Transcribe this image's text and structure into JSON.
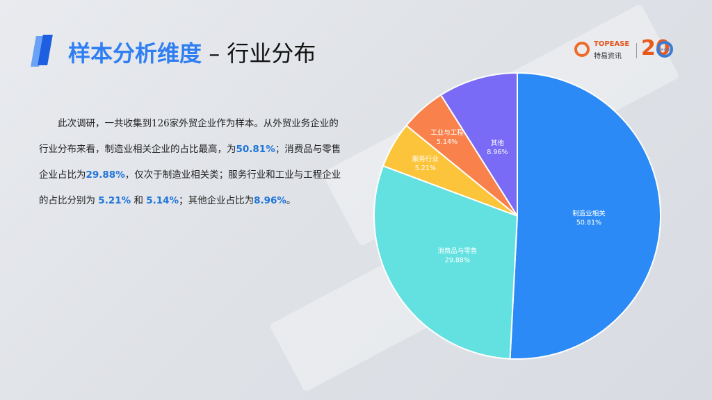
{
  "header": {
    "title_highlight": "样本分析维度",
    "title_rest": " – 行业分布"
  },
  "logo": {
    "brand": "TOPEASE",
    "brand_cn": "特易资讯",
    "anniversary": "20",
    "years": "years"
  },
  "description": {
    "p1": "此次调研，一共收集到126家外贸企业作为样本。从外贸业务企业的行业分布来看，制造业相关企业的占比最高，为",
    "v1": "50.81%",
    "p2": "；消费品与零售企业占比为",
    "v2": "29.88%",
    "p3": "，仅次于制造业相关类；服务行业和工业与工程企业的占比分别为",
    "v3": "5.21%",
    "p4": "和",
    "v4": "5.14%",
    "p5": "；其他企业占比为",
    "v5": "8.96%",
    "p6": "。"
  },
  "chart_data": {
    "type": "pie",
    "title": "",
    "slices": [
      {
        "label": "制造业相关",
        "value": 50.81,
        "display": "50.81%",
        "color": "#2b8af5"
      },
      {
        "label": "消费品与零售",
        "value": 29.88,
        "display": "29.88%",
        "color": "#63e1e0"
      },
      {
        "label": "服务行业",
        "value": 5.21,
        "display": "5.21%",
        "color": "#fbc43a"
      },
      {
        "label": "工业与工程",
        "value": 5.14,
        "display": "5.14%",
        "color": "#f9814b"
      },
      {
        "label": "其他",
        "value": 8.96,
        "display": "8.96%",
        "color": "#7a6bf6"
      }
    ]
  }
}
